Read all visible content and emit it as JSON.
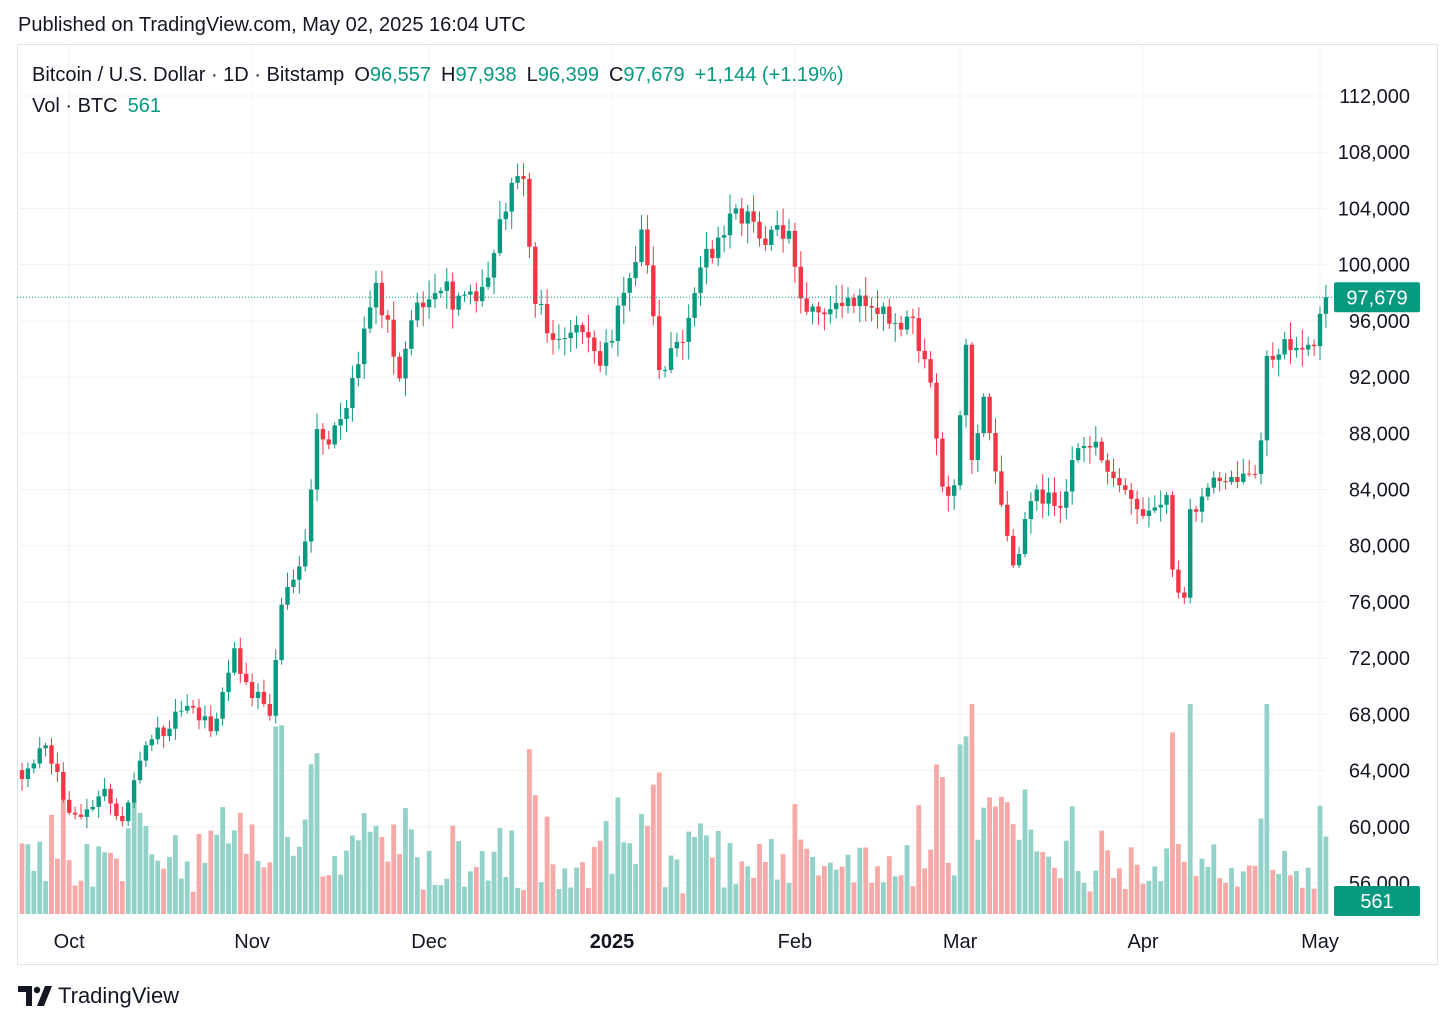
{
  "header": {
    "published": "Published on TradingView.com, May 02, 2025 16:04 UTC"
  },
  "legend": {
    "symbol": "Bitcoin / U.S. Dollar · 1D · Bitstamp",
    "open_label": "O",
    "open": "96,557",
    "high_label": "H",
    "high": "97,938",
    "low_label": "L",
    "low": "96,399",
    "close_label": "C",
    "close": "97,679",
    "change": "+1,144 (+1.19%)",
    "volume_label": "Vol · BTC",
    "volume": "561"
  },
  "price_badge": "97,679",
  "volume_badge": "561",
  "footer": {
    "brand": "TradingView"
  },
  "colors": {
    "up": "#089981",
    "down": "#f23645",
    "volume_up": "#92d2c8",
    "volume_down": "#f7a9a7",
    "grid": "#f0f3fa",
    "text": "#131722"
  },
  "chart_data": {
    "type": "candlestick",
    "title": "Bitcoin / U.S. Dollar · 1D · Bitstamp",
    "ylim": [
      52800,
      113600
    ],
    "y_ticks": [
      56000,
      60000,
      64000,
      68000,
      72000,
      76000,
      80000,
      84000,
      88000,
      92000,
      96000,
      100000,
      104000,
      108000,
      112000
    ],
    "y_tick_labels": [
      "56,000",
      "60,000",
      "64,000",
      "68,000",
      "72,000",
      "76,000",
      "80,000",
      "84,000",
      "88,000",
      "92,000",
      "96,000",
      "100,000",
      "104,000",
      "108,000",
      "112,000"
    ],
    "x_ticks": [
      {
        "label": "Oct",
        "date": "2024-10-01"
      },
      {
        "label": "Nov",
        "date": "2024-11-01"
      },
      {
        "label": "Dec",
        "date": "2024-12-01"
      },
      {
        "label": "2025",
        "date": "2025-01-01"
      },
      {
        "label": "Feb",
        "date": "2025-02-01"
      },
      {
        "label": "Mar",
        "date": "2025-03-01"
      },
      {
        "label": "Apr",
        "date": "2025-04-01"
      },
      {
        "label": "May",
        "date": "2025-05-01"
      }
    ],
    "start_date": "2024-09-23",
    "last_price": 97679,
    "grid": true,
    "keypoints": [
      {
        "date": "2024-09-23",
        "close": 63400
      },
      {
        "date": "2024-09-27",
        "close": 65800
      },
      {
        "date": "2024-10-01",
        "close": 61000
      },
      {
        "date": "2024-10-03",
        "close": 60700
      },
      {
        "date": "2024-10-07",
        "close": 62700
      },
      {
        "date": "2024-10-10",
        "close": 60400
      },
      {
        "date": "2024-10-14",
        "close": 65800
      },
      {
        "date": "2024-10-21",
        "close": 68600
      },
      {
        "date": "2024-10-25",
        "close": 66800
      },
      {
        "date": "2024-10-29",
        "close": 72700
      },
      {
        "date": "2024-10-31",
        "close": 70300
      },
      {
        "date": "2024-11-04",
        "close": 67900
      },
      {
        "date": "2024-11-06",
        "close": 75800
      },
      {
        "date": "2024-11-10",
        "close": 80300
      },
      {
        "date": "2024-11-12",
        "close": 88300
      },
      {
        "date": "2024-11-14",
        "close": 87200
      },
      {
        "date": "2024-11-17",
        "close": 89800
      },
      {
        "date": "2024-11-22",
        "close": 98700
      },
      {
        "date": "2024-11-26",
        "close": 91900
      },
      {
        "date": "2024-11-29",
        "close": 97300
      },
      {
        "date": "2024-12-04",
        "close": 98800
      },
      {
        "date": "2024-12-05",
        "close": 96800
      },
      {
        "date": "2024-12-09",
        "close": 97400
      },
      {
        "date": "2024-12-16",
        "close": 106300
      },
      {
        "date": "2024-12-17",
        "close": 106100
      },
      {
        "date": "2024-12-19",
        "close": 97200
      },
      {
        "date": "2024-12-23",
        "close": 94700
      },
      {
        "date": "2024-12-26",
        "close": 95700
      },
      {
        "date": "2024-12-30",
        "close": 92800
      },
      {
        "date": "2025-01-03",
        "close": 98000
      },
      {
        "date": "2025-01-06",
        "close": 102500
      },
      {
        "date": "2025-01-09",
        "close": 92500
      },
      {
        "date": "2025-01-13",
        "close": 94500
      },
      {
        "date": "2025-01-16",
        "close": 99800
      },
      {
        "date": "2025-01-20",
        "close": 102100
      },
      {
        "date": "2025-01-22",
        "close": 104000
      },
      {
        "date": "2025-01-27",
        "close": 101400
      },
      {
        "date": "2025-01-31",
        "close": 102400
      },
      {
        "date": "2025-02-02",
        "close": 97600
      },
      {
        "date": "2025-02-05",
        "close": 96600
      },
      {
        "date": "2025-02-12",
        "close": 97800
      },
      {
        "date": "2025-02-17",
        "close": 95800
      },
      {
        "date": "2025-02-21",
        "close": 96200
      },
      {
        "date": "2025-02-24",
        "close": 91600
      },
      {
        "date": "2025-02-26",
        "close": 84200
      },
      {
        "date": "2025-02-28",
        "close": 84300
      },
      {
        "date": "2025-03-02",
        "close": 94300
      },
      {
        "date": "2025-03-03",
        "close": 86100
      },
      {
        "date": "2025-03-05",
        "close": 90600
      },
      {
        "date": "2025-03-09",
        "close": 80700
      },
      {
        "date": "2025-03-10",
        "close": 78600
      },
      {
        "date": "2025-03-14",
        "close": 84000
      },
      {
        "date": "2025-03-18",
        "close": 82700
      },
      {
        "date": "2025-03-20",
        "close": 86100
      },
      {
        "date": "2025-03-24",
        "close": 87400
      },
      {
        "date": "2025-03-28",
        "close": 84300
      },
      {
        "date": "2025-03-31",
        "close": 82600
      },
      {
        "date": "2025-04-02",
        "close": 82500
      },
      {
        "date": "2025-04-05",
        "close": 83600
      },
      {
        "date": "2025-04-06",
        "close": 78300
      },
      {
        "date": "2025-04-08",
        "close": 76300
      },
      {
        "date": "2025-04-09",
        "close": 82600
      },
      {
        "date": "2025-04-11",
        "close": 83500
      },
      {
        "date": "2025-04-14",
        "close": 84600
      },
      {
        "date": "2025-04-20",
        "close": 85100
      },
      {
        "date": "2025-04-21",
        "close": 87500
      },
      {
        "date": "2025-04-22",
        "close": 93500
      },
      {
        "date": "2025-04-25",
        "close": 94700
      },
      {
        "date": "2025-04-29",
        "close": 94300
      },
      {
        "date": "2025-04-30",
        "close": 94200
      },
      {
        "date": "2025-05-01",
        "close": 96500
      },
      {
        "date": "2025-05-02",
        "close": 97679
      }
    ]
  }
}
